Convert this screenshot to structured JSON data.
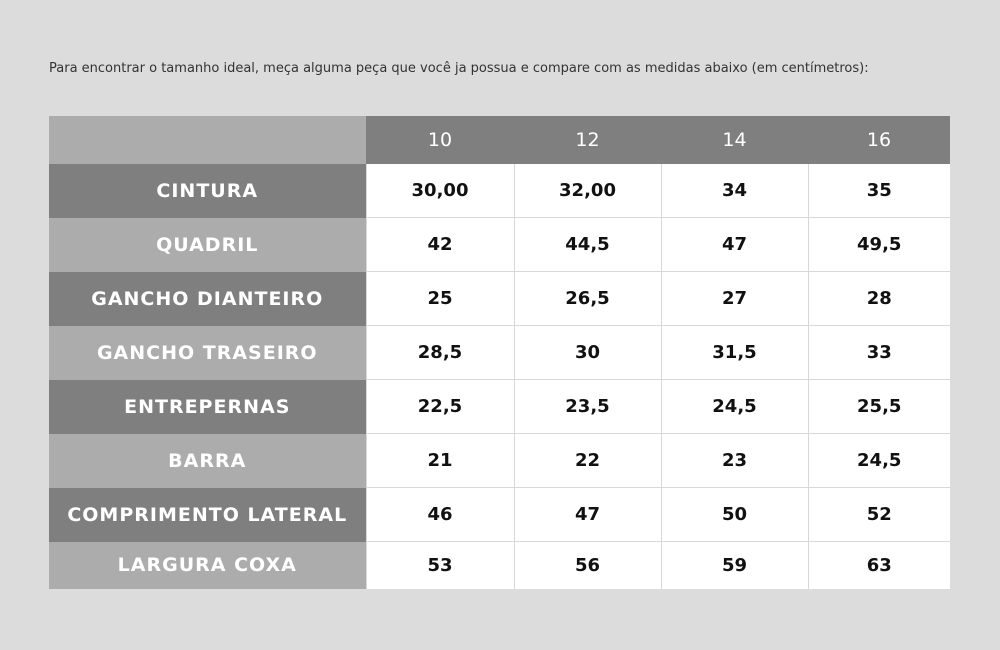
{
  "intro_text": "Para encontrar o tamanho ideal, meça alguma peça que você ja possua e compare com as medidas abaixo (em centímetros):",
  "table": {
    "sizes": [
      "10",
      "12",
      "14",
      "16"
    ],
    "rows": [
      {
        "label": "CINTURA",
        "values": [
          "30,00",
          "32,00",
          "34",
          "35"
        ]
      },
      {
        "label": "QUADRIL",
        "values": [
          "42",
          "44,5",
          "47",
          "49,5"
        ]
      },
      {
        "label": "GANCHO DIANTEIRO",
        "values": [
          "25",
          "26,5",
          "27",
          "28"
        ]
      },
      {
        "label": "GANCHO TRASEIRO",
        "values": [
          "28,5",
          "30",
          "31,5",
          "33"
        ]
      },
      {
        "label": "ENTREPERNAS",
        "values": [
          "22,5",
          "23,5",
          "24,5",
          "25,5"
        ]
      },
      {
        "label": "BARRA",
        "values": [
          "21",
          "22",
          "23",
          "24,5"
        ]
      },
      {
        "label": "COMPRIMENTO LATERAL",
        "values": [
          "46",
          "47",
          "50",
          "52"
        ]
      },
      {
        "label": "LARGURA COXA",
        "values": [
          "53",
          "56",
          "59",
          "63"
        ]
      }
    ]
  },
  "colors": {
    "background": "#dcdcdc",
    "header_dark": "#7f7f7f",
    "header_light": "#acacac",
    "cell": "#ffffff"
  }
}
